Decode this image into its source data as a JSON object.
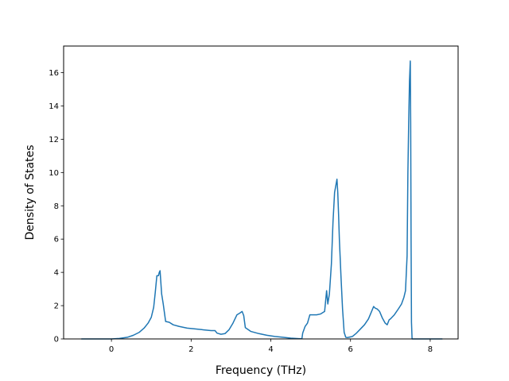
{
  "chart_data": {
    "type": "line",
    "title": "",
    "xlabel": "Frequency (THz)",
    "ylabel": "Density of States",
    "xlim": [
      -1.2,
      8.7
    ],
    "ylim": [
      0,
      17.6
    ],
    "xticks": [
      0,
      2,
      4,
      6,
      8
    ],
    "yticks": [
      0,
      2,
      4,
      6,
      8,
      10,
      12,
      14,
      16
    ],
    "xtick_labels": [
      "0",
      "2",
      "4",
      "6",
      "8"
    ],
    "ytick_labels": [
      "0",
      "2",
      "4",
      "6",
      "8",
      "10",
      "12",
      "14",
      "16"
    ],
    "grid": false,
    "line_color": "#1f77b4",
    "series": [
      {
        "x": [
          -0.75,
          -0.5,
          -0.25,
          0.0,
          0.2,
          0.4,
          0.55,
          0.7,
          0.82,
          0.92,
          1.0,
          1.06,
          1.1,
          1.14,
          1.18,
          1.2,
          1.22,
          1.26,
          1.3,
          1.36,
          1.45,
          1.55,
          1.7,
          1.9,
          2.1,
          2.3,
          2.5,
          2.6,
          2.65,
          2.75,
          2.85,
          2.95,
          3.05,
          3.15,
          3.22,
          3.28,
          3.32,
          3.36,
          3.5,
          3.7,
          3.9,
          4.1,
          4.3,
          4.5,
          4.7,
          4.78,
          4.8,
          4.86,
          4.92,
          4.98,
          5.02,
          5.08,
          5.15,
          5.25,
          5.35,
          5.4,
          5.43,
          5.47,
          5.52,
          5.56,
          5.6,
          5.63,
          5.66,
          5.68,
          5.7,
          5.72,
          5.76,
          5.8,
          5.84,
          5.88,
          5.92,
          5.96,
          6.05,
          6.15,
          6.25,
          6.35,
          6.45,
          6.52,
          6.58,
          6.62,
          6.67,
          6.73,
          6.8,
          6.87,
          6.92,
          6.97,
          7.0,
          7.1,
          7.2,
          7.28,
          7.34,
          7.38,
          7.42,
          7.44,
          7.46,
          7.48,
          7.5,
          7.51,
          7.52,
          7.53,
          7.545,
          7.56,
          7.7,
          8.0,
          8.3
        ],
        "y": [
          0.0,
          0.0,
          0.0,
          0.0,
          0.03,
          0.1,
          0.22,
          0.4,
          0.65,
          0.95,
          1.3,
          1.9,
          2.8,
          3.8,
          3.8,
          4.0,
          4.1,
          2.7,
          2.1,
          1.05,
          1.0,
          0.85,
          0.75,
          0.65,
          0.6,
          0.55,
          0.5,
          0.5,
          0.35,
          0.28,
          0.32,
          0.55,
          0.95,
          1.45,
          1.55,
          1.65,
          1.4,
          0.68,
          0.45,
          0.32,
          0.22,
          0.15,
          0.1,
          0.05,
          0.02,
          0.01,
          0.35,
          0.75,
          0.95,
          1.45,
          1.45,
          1.45,
          1.45,
          1.5,
          1.65,
          2.9,
          2.1,
          2.7,
          4.5,
          7.0,
          8.8,
          9.2,
          9.6,
          8.8,
          7.5,
          6.0,
          3.8,
          1.8,
          0.4,
          0.1,
          0.08,
          0.1,
          0.15,
          0.35,
          0.6,
          0.85,
          1.2,
          1.6,
          1.95,
          1.85,
          1.8,
          1.65,
          1.25,
          0.95,
          0.85,
          1.15,
          1.2,
          1.45,
          1.8,
          2.1,
          2.5,
          2.9,
          5.0,
          10.0,
          13.0,
          15.5,
          16.7,
          13.0,
          6.0,
          1.0,
          0.0,
          0.0,
          0.0,
          0.0,
          0.0
        ]
      }
    ]
  }
}
